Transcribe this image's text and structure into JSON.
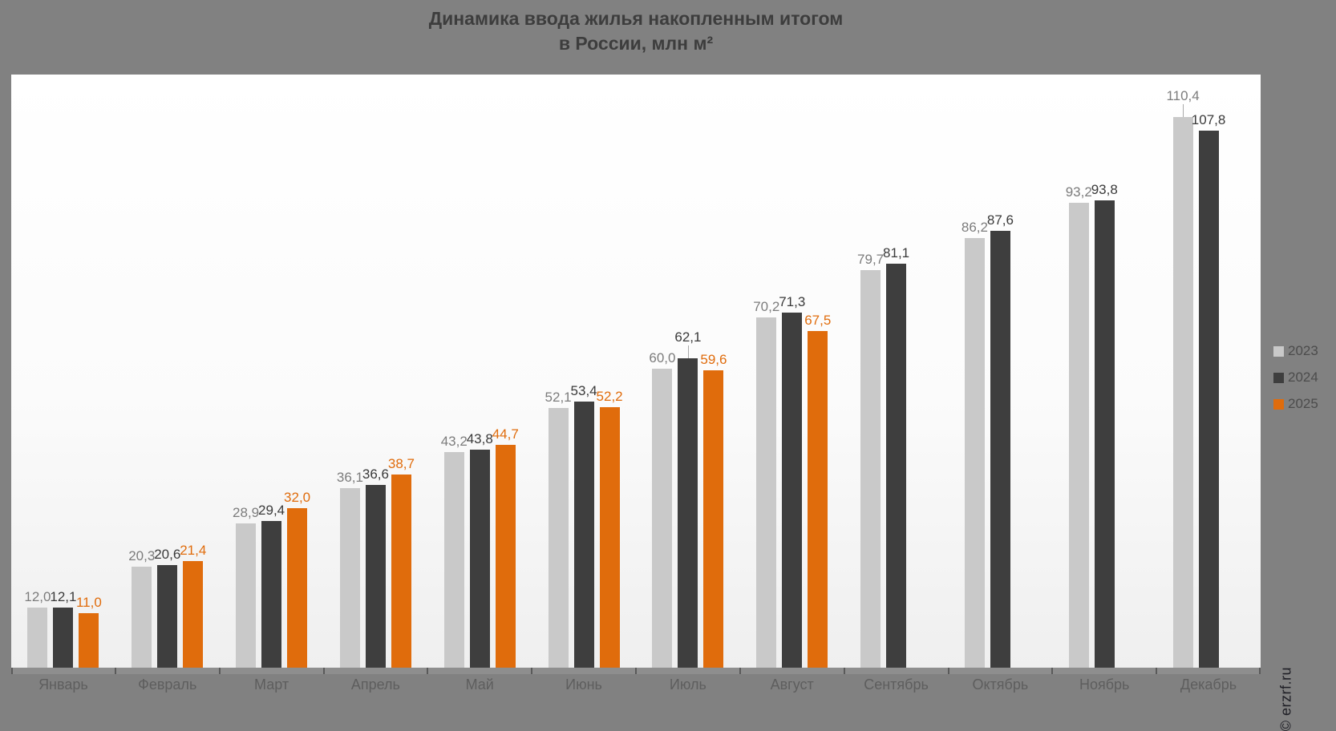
{
  "title": {
    "line1": "Динамика ввода жилья накопленным итогом",
    "line2": "в России, млн м²"
  },
  "watermark": "© erzrf.ru",
  "legend": [
    {
      "label": "2023",
      "color": "#c9c9c9"
    },
    {
      "label": "2024",
      "color": "#3e3e3e"
    },
    {
      "label": "2025",
      "color": "#e06c0c"
    }
  ],
  "colors": {
    "background": "#818181",
    "plot_top": "#ffffff",
    "plot_bottom": "#efefef",
    "title_text": "#3d3d3d",
    "axis_label_text": "#5e5e5e",
    "series_2023": "#c9c9c9",
    "series_2024": "#3e3e3e",
    "series_2025": "#e06c0c",
    "label_2023": "#7c7c7c",
    "label_2024": "#3a3a3a",
    "label_2025": "#e06c0c"
  },
  "chart_data": {
    "type": "bar",
    "title": "Динамика ввода жилья накопленным итогом в России, млн м²",
    "categories": [
      "Январь",
      "Февраль",
      "Март",
      "Апрель",
      "Май",
      "Июнь",
      "Июль",
      "Август",
      "Сентябрь",
      "Октябрь",
      "Ноябрь",
      "Декабрь"
    ],
    "series": [
      {
        "name": "2023",
        "color": "#c9c9c9",
        "label_color": "#7c7c7c",
        "values": [
          12.0,
          20.3,
          28.9,
          36.1,
          43.2,
          52.1,
          60.0,
          70.2,
          79.7,
          86.2,
          93.2,
          110.4
        ]
      },
      {
        "name": "2024",
        "color": "#3e3e3e",
        "label_color": "#3a3a3a",
        "values": [
          12.1,
          20.6,
          29.4,
          36.6,
          43.8,
          53.4,
          62.1,
          71.3,
          81.1,
          87.6,
          93.8,
          107.8
        ]
      },
      {
        "name": "2025",
        "color": "#e06c0c",
        "label_color": "#e06c0c",
        "values": [
          11.0,
          21.4,
          32.0,
          38.7,
          44.7,
          52.2,
          59.6,
          67.5,
          null,
          null,
          null,
          null
        ]
      }
    ],
    "value_label_decimal_separator": ",",
    "value_label_decimals": 1,
    "ylim": [
      0,
      119
    ],
    "grid": false,
    "legend_position": "right",
    "raised_labels": [
      {
        "series": "2024",
        "category": "Июль"
      },
      {
        "series": "2023",
        "category": "Декабрь"
      }
    ]
  }
}
